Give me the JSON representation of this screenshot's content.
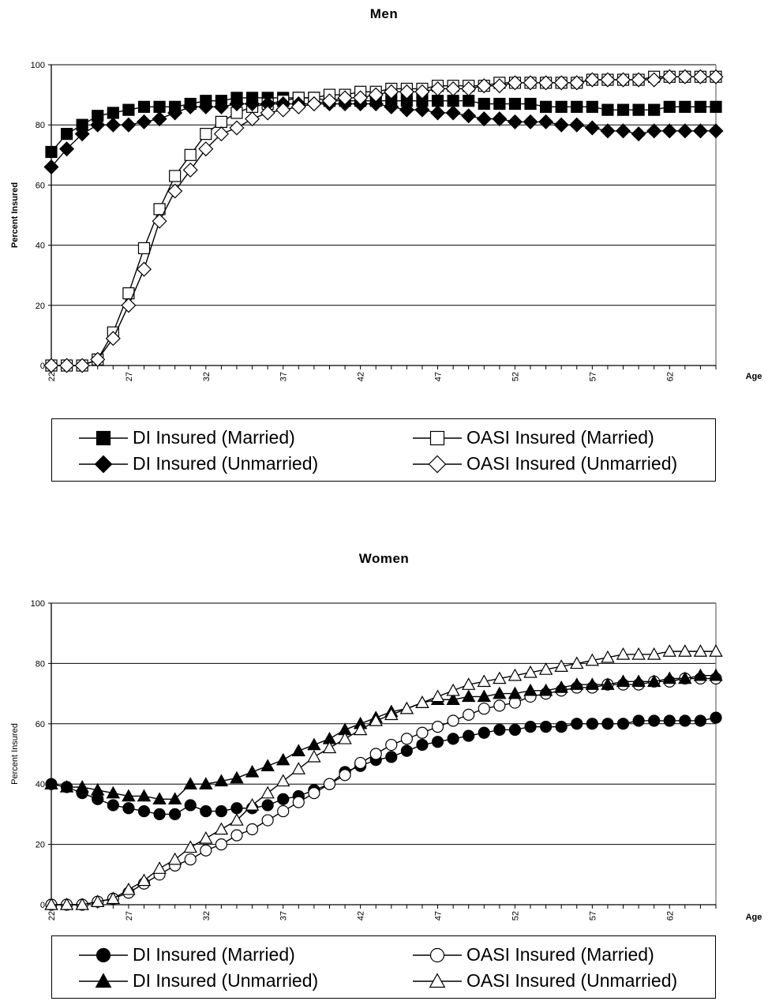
{
  "chart_data": [
    {
      "type": "line",
      "title": "Men",
      "xlabel": "Age",
      "ylabel": "Percent Insured",
      "ylim": [
        0,
        100
      ],
      "yticks": [
        0,
        20,
        40,
        60,
        80,
        100
      ],
      "xticks": [
        22,
        27,
        32,
        37,
        42,
        47,
        52,
        57,
        62
      ],
      "grid": "horizontal",
      "legend_position": "bottom",
      "x": [
        22,
        23,
        24,
        25,
        26,
        27,
        28,
        29,
        30,
        31,
        32,
        33,
        34,
        35,
        36,
        37,
        38,
        39,
        40,
        41,
        42,
        43,
        44,
        45,
        46,
        47,
        48,
        49,
        50,
        51,
        52,
        53,
        54,
        55,
        56,
        57,
        58,
        59,
        60,
        61,
        62,
        63,
        64,
        65
      ],
      "series": [
        {
          "name": "DI Insured (Married)",
          "color": "#000000",
          "marker": "square-filled",
          "values": [
            71,
            77,
            80,
            83,
            84,
            85,
            86,
            86,
            86,
            87,
            88,
            88,
            89,
            89,
            89,
            89,
            89,
            89,
            88,
            88,
            88,
            88,
            88,
            88,
            88,
            88,
            88,
            88,
            87,
            87,
            87,
            87,
            86,
            86,
            86,
            86,
            85,
            85,
            85,
            85,
            86,
            86,
            86,
            86
          ]
        },
        {
          "name": "OASI Insured (Married)",
          "color": "#000000",
          "marker": "square-open",
          "values": [
            0,
            0,
            0,
            2,
            11,
            24,
            39,
            52,
            63,
            70,
            77,
            81,
            84,
            86,
            87,
            88,
            89,
            89,
            90,
            90,
            91,
            91,
            92,
            92,
            92,
            93,
            93,
            93,
            93,
            94,
            94,
            94,
            94,
            94,
            94,
            95,
            95,
            95,
            95,
            96,
            96,
            96,
            96,
            96
          ]
        },
        {
          "name": "DI Insured (Unmarried)",
          "color": "#000000",
          "marker": "diamond-filled",
          "values": [
            66,
            72,
            77,
            80,
            80,
            80,
            81,
            82,
            84,
            86,
            86,
            86,
            87,
            87,
            87,
            87,
            87,
            87,
            87,
            87,
            87,
            87,
            86,
            85,
            85,
            84,
            84,
            83,
            82,
            82,
            81,
            81,
            81,
            80,
            80,
            79,
            78,
            78,
            77,
            78,
            78,
            78,
            78,
            78
          ]
        },
        {
          "name": "OASI Insured (Unmarried)",
          "color": "#000000",
          "marker": "diamond-open",
          "values": [
            0,
            0,
            0,
            2,
            9,
            20,
            32,
            48,
            58,
            65,
            72,
            77,
            79,
            82,
            84,
            85,
            86,
            87,
            88,
            89,
            89,
            90,
            91,
            91,
            91,
            92,
            92,
            92,
            93,
            93,
            94,
            94,
            94,
            94,
            94,
            95,
            95,
            95,
            95,
            95,
            96,
            96,
            96,
            96
          ]
        }
      ]
    },
    {
      "type": "line",
      "title": "Women",
      "xlabel": "Age",
      "ylabel": "Percent Insured",
      "ylim": [
        0,
        100
      ],
      "yticks": [
        0,
        20,
        40,
        60,
        80,
        100
      ],
      "xticks": [
        22,
        27,
        32,
        37,
        42,
        47,
        52,
        57,
        62
      ],
      "grid": "horizontal",
      "legend_position": "bottom",
      "x": [
        22,
        23,
        24,
        25,
        26,
        27,
        28,
        29,
        30,
        31,
        32,
        33,
        34,
        35,
        36,
        37,
        38,
        39,
        40,
        41,
        42,
        43,
        44,
        45,
        46,
        47,
        48,
        49,
        50,
        51,
        52,
        53,
        54,
        55,
        56,
        57,
        58,
        59,
        60,
        61,
        62,
        63,
        64,
        65
      ],
      "series": [
        {
          "name": "DI Insured (Married)",
          "color": "#000000",
          "marker": "circle-filled",
          "values": [
            40,
            39,
            37,
            35,
            33,
            32,
            31,
            30,
            30,
            33,
            31,
            31,
            32,
            32,
            33,
            35,
            36,
            38,
            40,
            44,
            46,
            48,
            49,
            51,
            53,
            54,
            55,
            56,
            57,
            58,
            58,
            59,
            59,
            59,
            60,
            60,
            60,
            60,
            61,
            61,
            61,
            61,
            61,
            62
          ]
        },
        {
          "name": "OASI Insured (Married)",
          "color": "#000000",
          "marker": "circle-open",
          "values": [
            0,
            0,
            0,
            1,
            2,
            4,
            7,
            10,
            13,
            15,
            18,
            20,
            23,
            25,
            28,
            31,
            34,
            37,
            40,
            43,
            47,
            50,
            53,
            55,
            57,
            59,
            61,
            63,
            65,
            66,
            67,
            69,
            70,
            71,
            72,
            72,
            73,
            73,
            73,
            74,
            74,
            75,
            75,
            75
          ]
        },
        {
          "name": "DI Insured (Unmarried)",
          "color": "#000000",
          "marker": "triangle-filled",
          "values": [
            40,
            39,
            39,
            38,
            37,
            36,
            36,
            35,
            35,
            40,
            40,
            41,
            42,
            44,
            46,
            48,
            51,
            53,
            55,
            58,
            60,
            62,
            64,
            65,
            67,
            68,
            68,
            69,
            69,
            70,
            70,
            71,
            71,
            72,
            73,
            73,
            73,
            74,
            74,
            74,
            75,
            75,
            76,
            76
          ]
        },
        {
          "name": "OASI Insured (Unmarried)",
          "color": "#000000",
          "marker": "triangle-open",
          "values": [
            0,
            0,
            0,
            1,
            2,
            5,
            8,
            12,
            15,
            19,
            22,
            25,
            28,
            33,
            37,
            41,
            45,
            49,
            52,
            55,
            58,
            61,
            63,
            65,
            67,
            69,
            71,
            73,
            74,
            75,
            76,
            77,
            78,
            79,
            80,
            81,
            82,
            83,
            83,
            83,
            84,
            84,
            84,
            84
          ]
        }
      ]
    }
  ]
}
